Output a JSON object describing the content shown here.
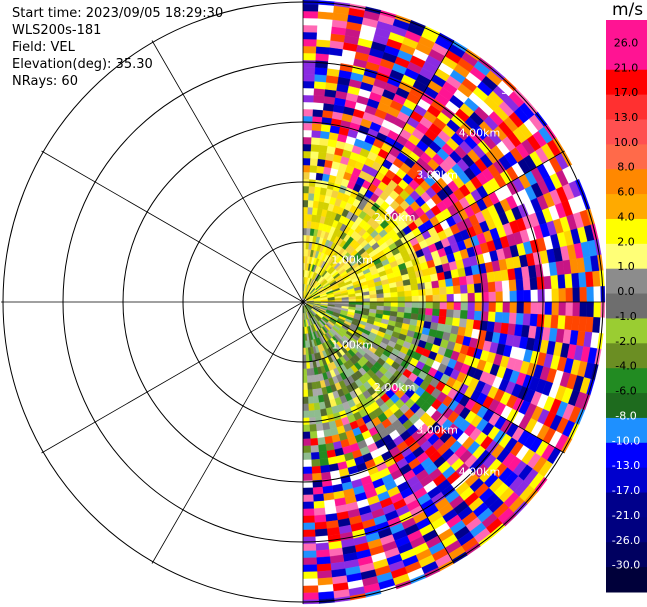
{
  "header": {
    "start_time": "Start time: 2023/09/05 18:29:30",
    "site": "WLS200s-181",
    "field": "Field: VEL",
    "elevation": "Elevation(deg): 35.30",
    "nrays": "NRays: 60"
  },
  "range_labels": [
    "1.00km",
    "2.00km",
    "3.00km",
    "4.00km",
    "5."
  ],
  "colorbar": {
    "unit": "m/s",
    "ticks": [
      "26.0",
      "21.0",
      "17.0",
      "13.0",
      "10.0",
      "8.0",
      "6.0",
      "4.0",
      "2.0",
      "1.0",
      "0.0",
      "-1.0",
      "-2.0",
      "-4.0",
      "-6.0",
      "-8.0",
      "-10.0",
      "-13.0",
      "-17.0",
      "-21.0",
      "-26.0",
      "-30.0"
    ],
    "colors": [
      "#ff1493",
      "#ff1493",
      "#ff0000",
      "#ff3030",
      "#ff5050",
      "#ff6a4a",
      "#ff8800",
      "#ffaa00",
      "#ffff00",
      "#ffff77",
      "#8c8c8c",
      "#6e6e6e",
      "#9acd32",
      "#6b8e23",
      "#228b22",
      "#1e6b1e",
      "#1e90ff",
      "#0000ff",
      "#0000cd",
      "#00008b",
      "#000080",
      "#000060",
      "#00003a"
    ]
  }
}
